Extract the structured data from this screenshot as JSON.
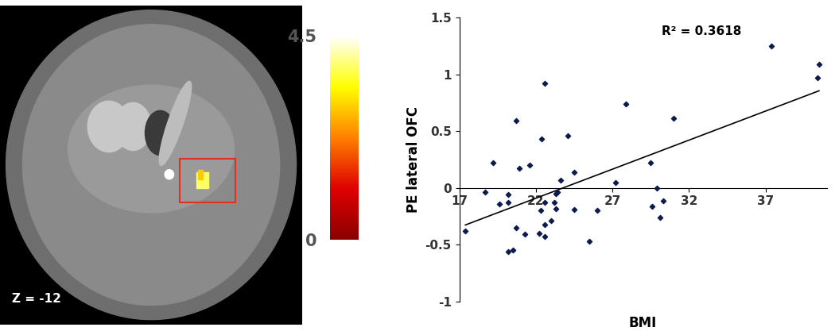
{
  "chart_data": [
    {
      "type": "image",
      "annotation": "Z = -12",
      "colorbar": {
        "range": [
          0,
          4.5
        ],
        "ticks": [
          0,
          4.5
        ]
      }
    },
    {
      "type": "scatter",
      "x": [
        17.4,
        18.7,
        19.2,
        19.6,
        20.2,
        20.2,
        20.2,
        20.5,
        20.7,
        20.7,
        20.9,
        21.3,
        21.6,
        22.3,
        22.2,
        22.4,
        22.6,
        22.6,
        22.6,
        22.6,
        23.0,
        23.2,
        23.3,
        23.3,
        23.4,
        23.6,
        24.1,
        24.5,
        24.5,
        25.5,
        26.0,
        27.2,
        27.9,
        29.5,
        29.6,
        29.9,
        30.1,
        30.3,
        31.0,
        37.4,
        40.4,
        40.5
      ],
      "values": [
        -0.38,
        -0.04,
        0.22,
        -0.14,
        -0.06,
        -0.13,
        -0.56,
        -0.55,
        -0.35,
        0.59,
        0.17,
        -0.41,
        0.2,
        -0.2,
        -0.4,
        0.43,
        0.92,
        -0.13,
        -0.32,
        -0.43,
        -0.29,
        -0.13,
        -0.05,
        -0.18,
        -0.04,
        0.07,
        0.46,
        0.14,
        -0.19,
        -0.47,
        -0.2,
        0.05,
        0.74,
        0.22,
        -0.16,
        0.0,
        -0.26,
        -0.11,
        0.61,
        1.25,
        0.97,
        1.09
      ],
      "xlabel": "BMI",
      "ylabel": "PE lateral OFC",
      "annotation": "R² = 0.3618",
      "xlim": [
        17,
        41
      ],
      "ylim": [
        -1,
        1.5
      ],
      "xticks": [
        17,
        22,
        27,
        32,
        37
      ],
      "yticks": [
        -1,
        -0.5,
        0,
        0.5,
        1,
        1.5
      ],
      "color": "#0d1a4d",
      "marker": "diamond"
    }
  ]
}
